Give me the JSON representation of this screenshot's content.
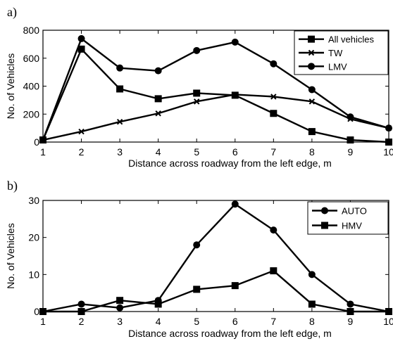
{
  "chart_data": [
    {
      "panel_label": "a)",
      "type": "line",
      "xlabel": "Distance across roadway from the left edge, m",
      "ylabel": "No. of Vehicles",
      "xlim": [
        1,
        10
      ],
      "ylim": [
        0,
        800
      ],
      "xticks": [
        "1",
        "2",
        "3",
        "4",
        "5",
        "6",
        "7",
        "8",
        "9",
        "10"
      ],
      "yticks": [
        "0",
        "200",
        "400",
        "600",
        "800"
      ],
      "x": [
        1,
        2,
        3,
        4,
        5,
        6,
        7,
        8,
        9,
        10
      ],
      "legend_position": "top-right",
      "series": [
        {
          "name": "All vehicles",
          "marker": "square",
          "values": [
            15,
            665,
            380,
            310,
            350,
            335,
            205,
            75,
            15,
            0
          ]
        },
        {
          "name": "TW",
          "marker": "x",
          "values": [
            15,
            75,
            145,
            205,
            290,
            340,
            325,
            290,
            165,
            100
          ]
        },
        {
          "name": "LMV",
          "marker": "circle",
          "values": [
            15,
            740,
            530,
            510,
            655,
            715,
            560,
            375,
            180,
            100
          ]
        }
      ]
    },
    {
      "panel_label": "b)",
      "type": "line",
      "xlabel": "Distance across roadway from the left edge, m",
      "ylabel": "No. of Vehicles",
      "xlim": [
        1,
        10
      ],
      "ylim": [
        0,
        30
      ],
      "xticks": [
        "1",
        "2",
        "3",
        "4",
        "5",
        "6",
        "7",
        "8",
        "9",
        "10"
      ],
      "yticks": [
        "0",
        "10",
        "20",
        "30"
      ],
      "x": [
        1,
        2,
        3,
        4,
        5,
        6,
        7,
        8,
        9,
        10
      ],
      "legend_position": "top-right",
      "series": [
        {
          "name": "AUTO",
          "marker": "circle",
          "values": [
            0,
            2,
            1,
            3,
            18,
            29,
            22,
            10,
            2,
            0
          ]
        },
        {
          "name": "HMV",
          "marker": "square",
          "values": [
            0,
            0,
            3,
            2,
            6,
            7,
            11,
            2,
            0,
            0
          ]
        }
      ]
    }
  ]
}
